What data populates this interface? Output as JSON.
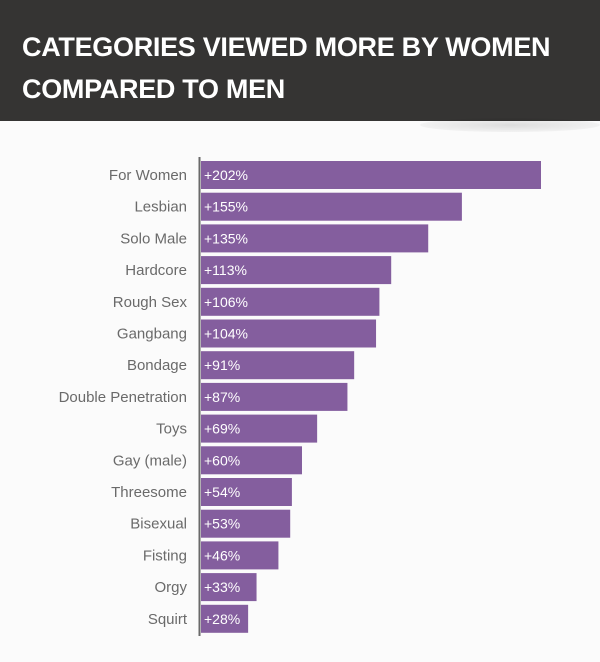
{
  "chart_data": {
    "type": "bar",
    "orientation": "horizontal",
    "title": "CATEGORIES VIEWED MORE BY WOMEN COMPARED TO MEN",
    "categories": [
      "For Women",
      "Lesbian",
      "Solo Male",
      "Hardcore",
      "Rough Sex",
      "Gangbang",
      "Bondage",
      "Double Penetration",
      "Toys",
      "Gay (male)",
      "Threesome",
      "Bisexual",
      "Fisting",
      "Orgy",
      "Squirt"
    ],
    "values": [
      202,
      155,
      135,
      113,
      106,
      104,
      91,
      87,
      69,
      60,
      54,
      53,
      46,
      33,
      28
    ],
    "data_labels": [
      "+202%",
      "+155%",
      "+135%",
      "+113%",
      "+106%",
      "+104%",
      "+91%",
      "+87%",
      "+69%",
      "+60%",
      "+54%",
      "+53%",
      "+46%",
      "+33%",
      "+28%"
    ],
    "xlabel": "",
    "ylabel": "",
    "grid": false,
    "colors": {
      "bar": "#845e9e",
      "header_bg": "#353433",
      "axis": "#6a6a6a"
    }
  }
}
